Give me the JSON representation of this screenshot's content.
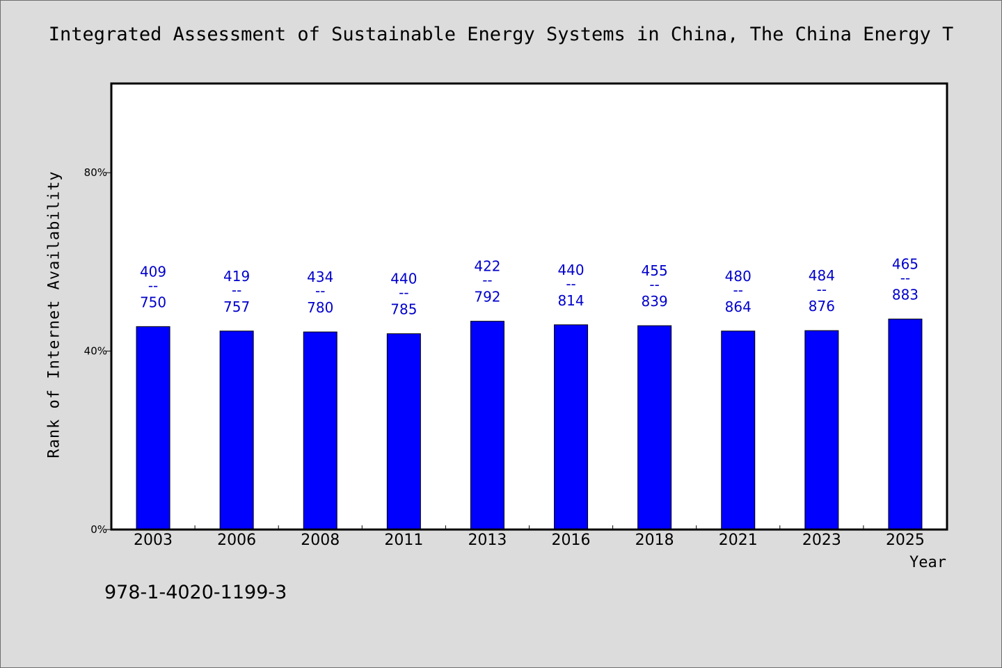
{
  "title": "Integrated Assessment of Sustainable Energy Systems in China, The China Energy T",
  "footnote": "978-1-4020-1199-3",
  "colors": {
    "bar": "#0000ff",
    "label": "#0000cc",
    "background": "#dcdcdc",
    "plot": "#ffffff"
  },
  "chart_data": {
    "type": "bar",
    "xlabel": "Year",
    "ylabel": "Rank of Internet Availability",
    "ylim": [
      0,
      100
    ],
    "yticks": [
      {
        "value": 0,
        "label": "0%"
      },
      {
        "value": 40,
        "label": "40%"
      },
      {
        "value": 80,
        "label": "80%"
      }
    ],
    "categories": [
      "2003",
      "2006",
      "2008",
      "2011",
      "2013",
      "2016",
      "2018",
      "2021",
      "2023",
      "2025"
    ],
    "values": [
      45.5,
      44.5,
      44.3,
      43.9,
      46.7,
      45.9,
      45.7,
      44.5,
      44.6,
      47.2
    ],
    "data_labels": [
      {
        "top": "409",
        "sep": "--",
        "bottom": "750"
      },
      {
        "top": "419",
        "sep": "--",
        "bottom": "757"
      },
      {
        "top": "434",
        "sep": "--",
        "bottom": "780"
      },
      {
        "top": "440",
        "sep": "--",
        "bottom": "785"
      },
      {
        "top": "422",
        "sep": "--",
        "bottom": "792"
      },
      {
        "top": "440",
        "sep": "--",
        "bottom": "814"
      },
      {
        "top": "455",
        "sep": "--",
        "bottom": "839"
      },
      {
        "top": "480",
        "sep": "--",
        "bottom": "864"
      },
      {
        "top": "484",
        "sep": "--",
        "bottom": "876"
      },
      {
        "top": "465",
        "sep": "--",
        "bottom": "883"
      }
    ],
    "grid": false,
    "legend": "none"
  }
}
